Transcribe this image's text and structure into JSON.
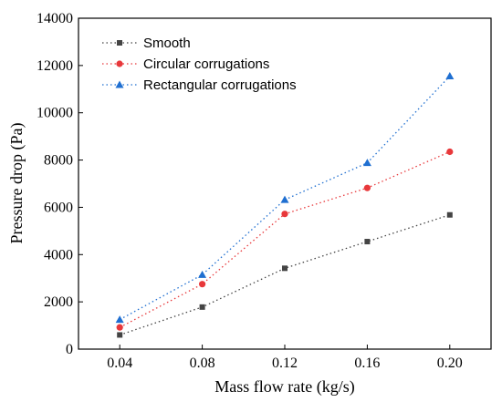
{
  "chart_data": {
    "type": "line",
    "xlabel": "Mass flow rate (kg/s)",
    "ylabel": "Pressure drop (Pa)",
    "x": [
      0.04,
      0.08,
      0.12,
      0.16,
      0.2
    ],
    "x_tick_labels": [
      "0.04",
      "0.08",
      "0.12",
      "0.16",
      "0.20"
    ],
    "y_ticks": [
      0,
      2000,
      4000,
      6000,
      8000,
      10000,
      12000,
      14000
    ],
    "y_tick_labels": [
      "0",
      "2000",
      "4000",
      "6000",
      "8000",
      "10000",
      "12000",
      "14000"
    ],
    "xlim": [
      0.02,
      0.22
    ],
    "ylim": [
      0,
      14000
    ],
    "grid": false,
    "legend_position": "top-left",
    "series": [
      {
        "name": "Smooth",
        "marker": "square",
        "color": "#444444",
        "line_style": "dotted",
        "values": [
          600,
          1780,
          3420,
          4550,
          5680
        ]
      },
      {
        "name": "Circular corrugations",
        "marker": "circle",
        "color": "#e8383b",
        "line_style": "dotted",
        "values": [
          920,
          2750,
          5720,
          6820,
          8350
        ]
      },
      {
        "name": "Rectangular corrugations",
        "marker": "triangle",
        "color": "#1f6fd1",
        "line_style": "dotted",
        "values": [
          1250,
          3150,
          6320,
          7880,
          11550
        ]
      }
    ]
  }
}
